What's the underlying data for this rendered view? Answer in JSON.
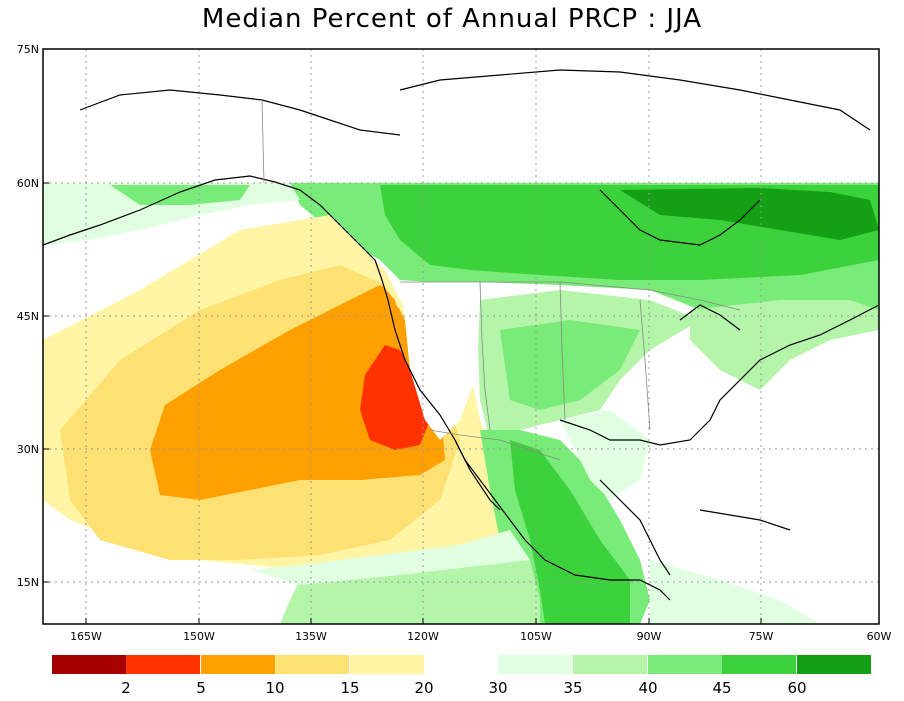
{
  "title": "Median Percent of Annual PRCP  :  JJA",
  "map": {
    "lat_labels": [
      "75N",
      "60N",
      "45N",
      "30N",
      "15N"
    ],
    "lon_labels": [
      "165W",
      "150W",
      "135W",
      "120W",
      "105W",
      "90W",
      "75W",
      "60W"
    ]
  },
  "colorbar": {
    "boxes": [
      {
        "color": "#a50000"
      },
      {
        "color": "#ff3200"
      },
      {
        "color": "#ffa000"
      },
      {
        "color": "#ffe173"
      },
      {
        "color": "#fff5a5"
      },
      {
        "color": "#e1ffe1"
      },
      {
        "color": "#b4f5aa"
      },
      {
        "color": "#78eb78"
      },
      {
        "color": "#3cd23c"
      },
      {
        "color": "#14a014"
      }
    ],
    "labels": [
      "2",
      "5",
      "10",
      "15",
      "20",
      "30",
      "35",
      "40",
      "45",
      "60"
    ]
  }
}
